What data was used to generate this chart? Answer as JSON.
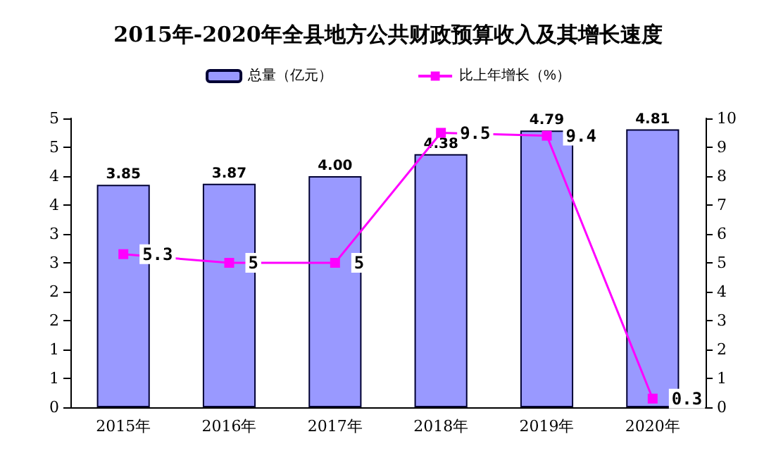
{
  "chart_data": {
    "type": "bar",
    "title": "2015年-2020年全县地方公共财政预算收入及其增长速度",
    "categories": [
      "2015年",
      "2016年",
      "2017年",
      "2018年",
      "2019年",
      "2020年"
    ],
    "series": [
      {
        "name": "总量（亿元）",
        "color": "#9999ff",
        "values": [
          3.85,
          3.87,
          4.0,
          4.38,
          4.79,
          4.81
        ],
        "value_labels": [
          "3.85",
          "3.87",
          "4.00",
          "4.38",
          "4.79",
          "4.81"
        ]
      },
      {
        "name": "比上年增长（%）",
        "type": "line",
        "axis": "y2",
        "color": "#ff00ff",
        "marker": "square",
        "values": [
          5.3,
          5,
          5,
          9.5,
          9.4,
          0.3
        ]
      }
    ],
    "ylim": [
      0,
      5
    ],
    "yticks": [
      0,
      {
        "value": 0.5,
        "label": "1"
      },
      1,
      {
        "value": 1.5,
        "label": "2"
      },
      2,
      {
        "value": 2.5,
        "label": "3"
      },
      3,
      {
        "value": 3.5,
        "label": "4"
      },
      4,
      {
        "value": 4.5,
        "label": "5"
      },
      5
    ],
    "y2lim": [
      0,
      10
    ],
    "y2ticks": [
      0,
      1,
      2,
      3,
      4,
      5,
      6,
      7,
      8,
      9,
      10
    ],
    "data_labels": true,
    "legend": "top",
    "grid": false
  }
}
